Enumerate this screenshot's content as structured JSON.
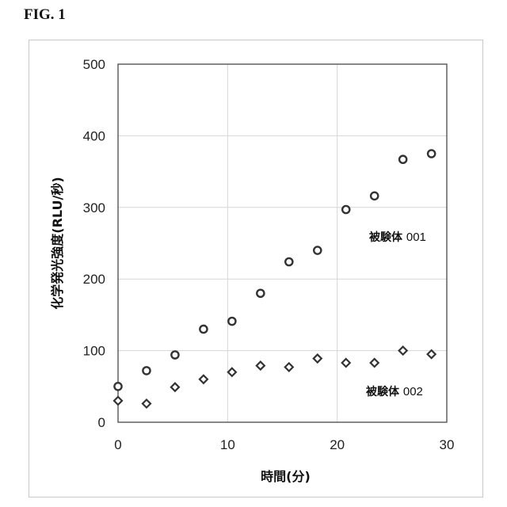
{
  "figure": {
    "label": "FIG. 1"
  },
  "chart_data": {
    "type": "scatter",
    "title": "",
    "xlabel": "時間(分)",
    "ylabel": "化学発光強度(RLU/秒)",
    "xlim": [
      0,
      30
    ],
    "ylim": [
      0,
      500
    ],
    "xticks": [
      0,
      10,
      20,
      30
    ],
    "yticks": [
      0,
      100,
      200,
      300,
      400,
      500
    ],
    "grid": true,
    "series": [
      {
        "name": "被験体 001",
        "marker": "circle",
        "color": "#333333",
        "x": [
          0,
          2.6,
          5.2,
          7.8,
          10.4,
          13.0,
          15.6,
          18.2,
          20.8,
          23.4,
          26.0,
          28.6
        ],
        "y": [
          50,
          72,
          94,
          130,
          141,
          180,
          224,
          240,
          297,
          316,
          367,
          375
        ]
      },
      {
        "name": "被験体 002",
        "marker": "diamond",
        "color": "#333333",
        "x": [
          0,
          2.6,
          5.2,
          7.8,
          10.4,
          13.0,
          15.6,
          18.2,
          20.8,
          23.4,
          26.0,
          28.6
        ],
        "y": [
          30,
          26,
          49,
          60,
          70,
          79,
          77,
          89,
          83,
          83,
          100,
          95
        ]
      }
    ]
  }
}
